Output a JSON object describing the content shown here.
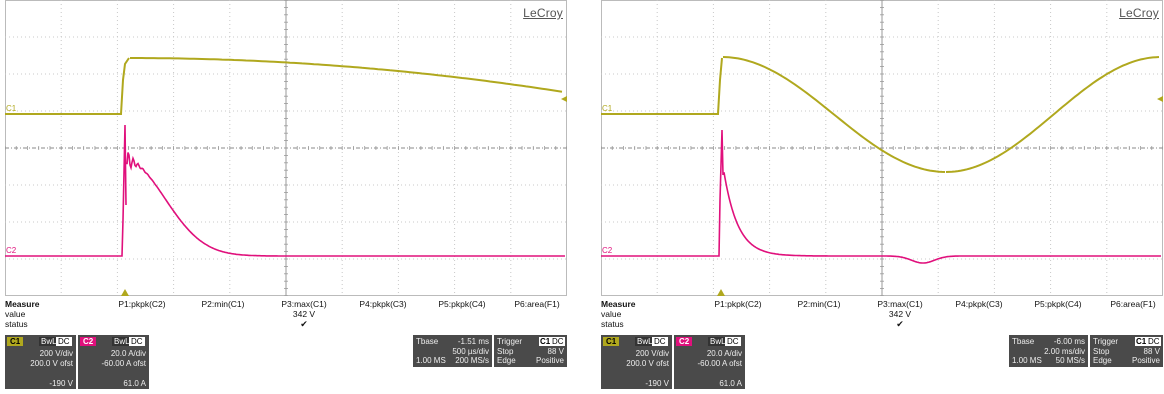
{
  "colors": {
    "c1": "#b0a81e",
    "c2": "#e0107c",
    "grid": "#c8c8c8",
    "panel": "#4a4a4a"
  },
  "screens": [
    {
      "logo": "LeCroy",
      "channel_marks": {
        "c1": "C1",
        "c2": "C2"
      },
      "measure": {
        "header": "Measure",
        "row_labels": [
          "value",
          "status"
        ],
        "params": [
          {
            "label": "P1:pkpk(C2)",
            "value": "",
            "status": ""
          },
          {
            "label": "P2:min(C1)",
            "value": "",
            "status": ""
          },
          {
            "label": "P3:max(C1)",
            "value": "342 V",
            "status": "✔"
          },
          {
            "label": "P4:pkpk(C3)",
            "value": "",
            "status": ""
          },
          {
            "label": "P5:pkpk(C4)",
            "value": "",
            "status": ""
          },
          {
            "label": "P6:area(F1)",
            "value": "",
            "status": ""
          }
        ]
      },
      "ch1": {
        "tag": "C1",
        "bw": "BwL",
        "coupling": "DC",
        "scale": "200 V/div",
        "offset": "200.0 V ofst",
        "bottom": "-190 V"
      },
      "ch2": {
        "tag": "C2",
        "bw": "BwL",
        "coupling": "DC",
        "scale": "20.0 A/div",
        "offset": "-60.00 A ofst",
        "bottom": "61.0 A"
      },
      "tbase": {
        "label": "Tbase",
        "delay": "-1.51 ms",
        "div": "500 µs/div",
        "samples": "1.00 MS",
        "rate": "200 MS/s"
      },
      "trigger": {
        "label": "Trigger",
        "source": "C1",
        "coupling": "DC",
        "mode": "Stop",
        "level": "88 V",
        "type": "Edge",
        "slope": "Positive"
      }
    },
    {
      "logo": "LeCroy",
      "channel_marks": {
        "c1": "C1",
        "c2": "C2"
      },
      "measure": {
        "header": "Measure",
        "row_labels": [
          "value",
          "status"
        ],
        "params": [
          {
            "label": "P1:pkpk(C2)",
            "value": "",
            "status": ""
          },
          {
            "label": "P2:min(C1)",
            "value": "",
            "status": ""
          },
          {
            "label": "P3:max(C1)",
            "value": "342 V",
            "status": "✔"
          },
          {
            "label": "P4:pkpk(C3)",
            "value": "",
            "status": ""
          },
          {
            "label": "P5:pkpk(C4)",
            "value": "",
            "status": ""
          },
          {
            "label": "P6:area(F1)",
            "value": "",
            "status": ""
          }
        ]
      },
      "ch1": {
        "tag": "C1",
        "bw": "BwL",
        "coupling": "DC",
        "scale": "200 V/div",
        "offset": "200.0 V ofst",
        "bottom": "-190 V"
      },
      "ch2": {
        "tag": "C2",
        "bw": "BwL",
        "coupling": "DC",
        "scale": "20.0 A/div",
        "offset": "-60.00 A ofst",
        "bottom": "61.0 A"
      },
      "tbase": {
        "label": "Tbase",
        "delay": "-6.00 ms",
        "div": "2.00 ms/div",
        "samples": "1.00 MS",
        "rate": "50 MS/s"
      },
      "trigger": {
        "label": "Trigger",
        "source": "C1",
        "coupling": "DC",
        "mode": "Stop",
        "level": "88 V",
        "type": "Edge",
        "slope": "Positive"
      }
    }
  ]
}
